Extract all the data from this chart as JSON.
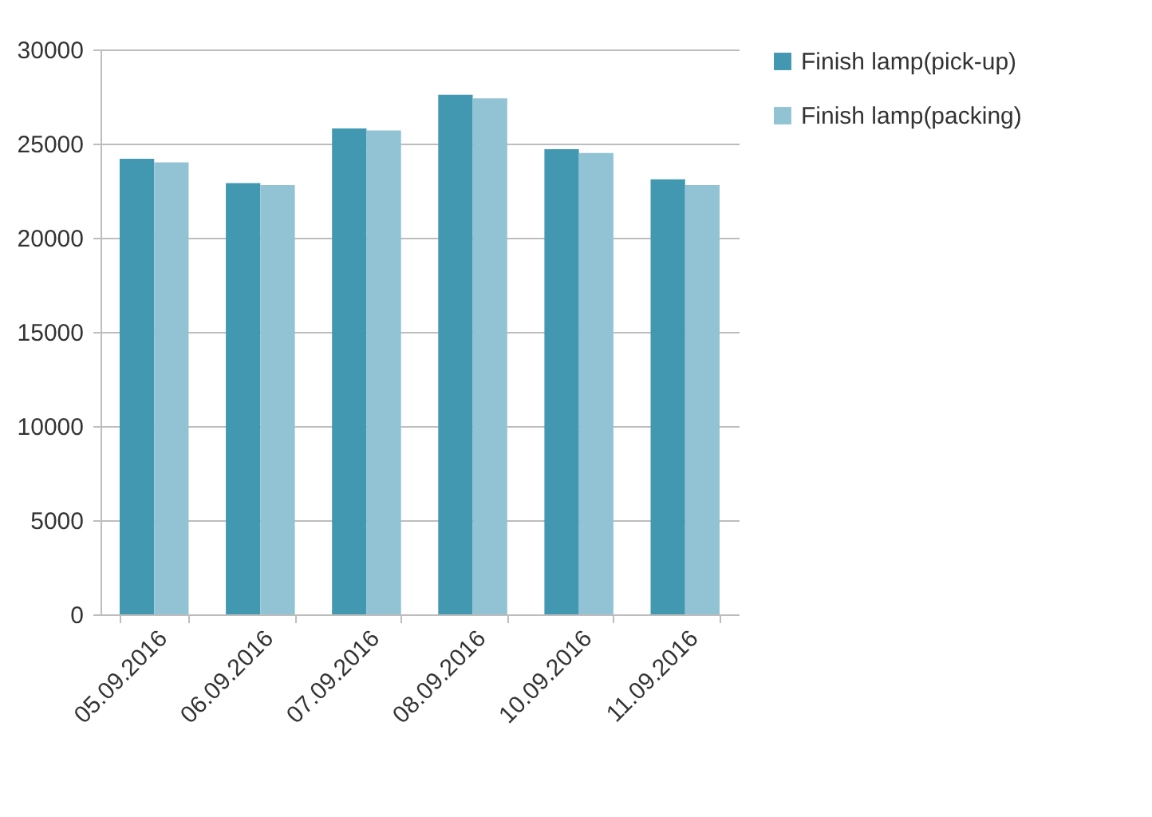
{
  "chart_data": {
    "type": "bar",
    "categories": [
      "05.09.2016",
      "06.09.2016",
      "07.09.2016",
      "08.09.2016",
      "10.09.2016",
      "11.09.2016"
    ],
    "series": [
      {
        "name": "Finish lamp(pick-up)",
        "color": "#4198b0",
        "values": [
          24200,
          22900,
          25800,
          27600,
          24700,
          23100
        ]
      },
      {
        "name": "Finish lamp(packing)",
        "color": "#92c3d5",
        "values": [
          24000,
          22800,
          25700,
          27400,
          24500,
          22800
        ]
      }
    ],
    "ylim": [
      0,
      30000
    ],
    "yticks": [
      0,
      5000,
      10000,
      15000,
      20000,
      25000,
      30000
    ],
    "grid": "y",
    "legend": "right"
  }
}
